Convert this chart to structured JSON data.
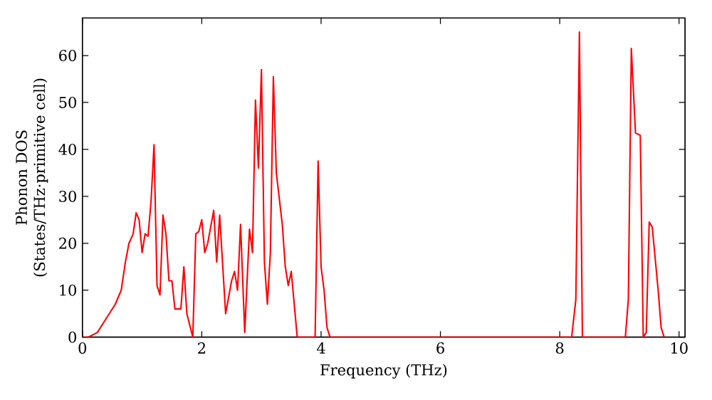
{
  "chart_data": {
    "type": "line",
    "xlabel": "Frequency (THz)",
    "ylabel": "Phonon DOS\n(States/THz·primitive cell)",
    "x": [
      0,
      0.1,
      0.25,
      0.4,
      0.55,
      0.65,
      0.72,
      0.78,
      0.85,
      0.9,
      0.95,
      1.0,
      1.05,
      1.1,
      1.15,
      1.2,
      1.25,
      1.3,
      1.35,
      1.4,
      1.45,
      1.5,
      1.55,
      1.65,
      1.7,
      1.75,
      1.85,
      1.9,
      1.95,
      2.0,
      2.05,
      2.1,
      2.2,
      2.25,
      2.3,
      2.4,
      2.5,
      2.55,
      2.6,
      2.65,
      2.72,
      2.8,
      2.85,
      2.9,
      2.95,
      3.0,
      3.05,
      3.1,
      3.15,
      3.2,
      3.25,
      3.35,
      3.4,
      3.45,
      3.5,
      3.6,
      3.9,
      3.95,
      4.0,
      4.05,
      4.1,
      4.15,
      8.2,
      8.27,
      8.33,
      8.38,
      9.1,
      9.15,
      9.2,
      9.27,
      9.35,
      9.4,
      9.45,
      9.5,
      9.55,
      9.65,
      9.7,
      9.75
    ],
    "series": [
      {
        "color": "#ff0000",
        "values": [
          0,
          0,
          1,
          4,
          7,
          10,
          16,
          20,
          22,
          26.5,
          25,
          18,
          22,
          21.5,
          29,
          41,
          11,
          9,
          26,
          22,
          12,
          12,
          6,
          6,
          15,
          5,
          0,
          22,
          22.5,
          25,
          18,
          20,
          27,
          16,
          26,
          5,
          12,
          14,
          10,
          24,
          1,
          23,
          18,
          50.5,
          36,
          57,
          16,
          7,
          18,
          55.5,
          35,
          24,
          15,
          11,
          14,
          0,
          0,
          37.5,
          15,
          10,
          2,
          0,
          0,
          8,
          65,
          0,
          0,
          8,
          61.5,
          43.5,
          43,
          0,
          1,
          24.5,
          23.5,
          10,
          2,
          0
        ]
      }
    ],
    "xlim": [
      0,
      10.1
    ],
    "ylim": [
      0,
      68
    ],
    "xticks": [
      0,
      2,
      4,
      6,
      8,
      10
    ],
    "yticks": [
      0,
      10,
      20,
      30,
      40,
      50,
      60
    ],
    "grid": false,
    "marker": "none",
    "line_style": "solid"
  }
}
